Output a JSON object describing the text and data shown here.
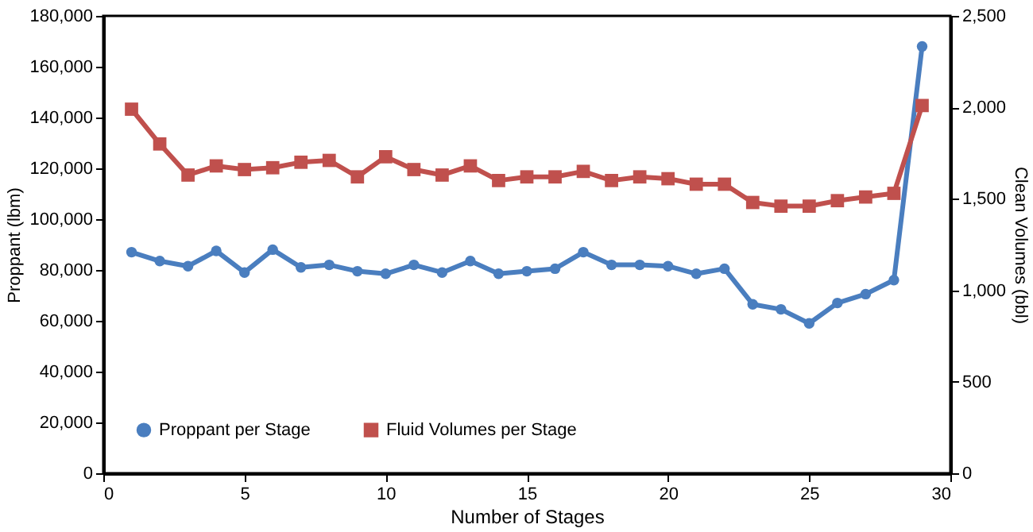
{
  "chart_data": {
    "type": "line",
    "xlabel": "Number of Stages",
    "ylabel": "Proppant (lbm)",
    "y2label": "Clean Volumes (bbl)",
    "x": [
      1,
      2,
      3,
      4,
      5,
      6,
      7,
      8,
      9,
      10,
      11,
      12,
      13,
      14,
      15,
      16,
      17,
      18,
      19,
      20,
      21,
      22,
      23,
      24,
      25,
      26,
      27,
      28,
      29
    ],
    "series": [
      {
        "name": "Proppant per Stage",
        "color": "#4a7ebf",
        "marker": "circle",
        "values": [
          87000,
          83500,
          81500,
          87500,
          79000,
          88000,
          81000,
          82000,
          79500,
          78500,
          82000,
          79000,
          83500,
          78500,
          79500,
          80500,
          87000,
          82000,
          82000,
          81500,
          78500,
          80500,
          66500,
          64500,
          59000,
          67000,
          70500,
          76000,
          168000
        ]
      },
      {
        "name": "Fluid Volumes per Stage",
        "color": "#c0504d",
        "marker": "square",
        "axis": "y2",
        "values": [
          1990,
          1800,
          1630,
          1680,
          1660,
          1670,
          1700,
          1710,
          1620,
          1730,
          1660,
          1630,
          1680,
          1600,
          1620,
          1620,
          1650,
          1600,
          1620,
          1610,
          1580,
          1580,
          1480,
          1460,
          1460,
          1490,
          1510,
          1530,
          2010
        ]
      }
    ],
    "xlim": [
      0,
      30
    ],
    "xticks": [
      0,
      5,
      10,
      15,
      20,
      25,
      30
    ],
    "ylim": [
      0,
      180000
    ],
    "yticks": [
      0,
      {
        "value": 20000,
        "label": "20,000"
      },
      {
        "value": 40000,
        "label": "40,000"
      },
      {
        "value": 60000,
        "label": "60,000"
      },
      {
        "value": 80000,
        "label": "80,000"
      },
      {
        "value": 100000,
        "label": "100,000"
      },
      {
        "value": 120000,
        "label": "120,000"
      },
      {
        "value": 140000,
        "label": "140,000"
      },
      {
        "value": 160000,
        "label": "160,000"
      },
      {
        "value": 180000,
        "label": "180,000"
      }
    ],
    "y2lim": [
      0,
      2500
    ],
    "y2ticks": [
      0,
      500,
      {
        "value": 1000,
        "label": "1,000"
      },
      {
        "value": 1500,
        "label": "1,500"
      },
      {
        "value": 2000,
        "label": "2,000"
      },
      {
        "value": 2500,
        "label": "2,500"
      }
    ],
    "legend": "bottom left",
    "grid": false,
    "line_style": "solid"
  }
}
